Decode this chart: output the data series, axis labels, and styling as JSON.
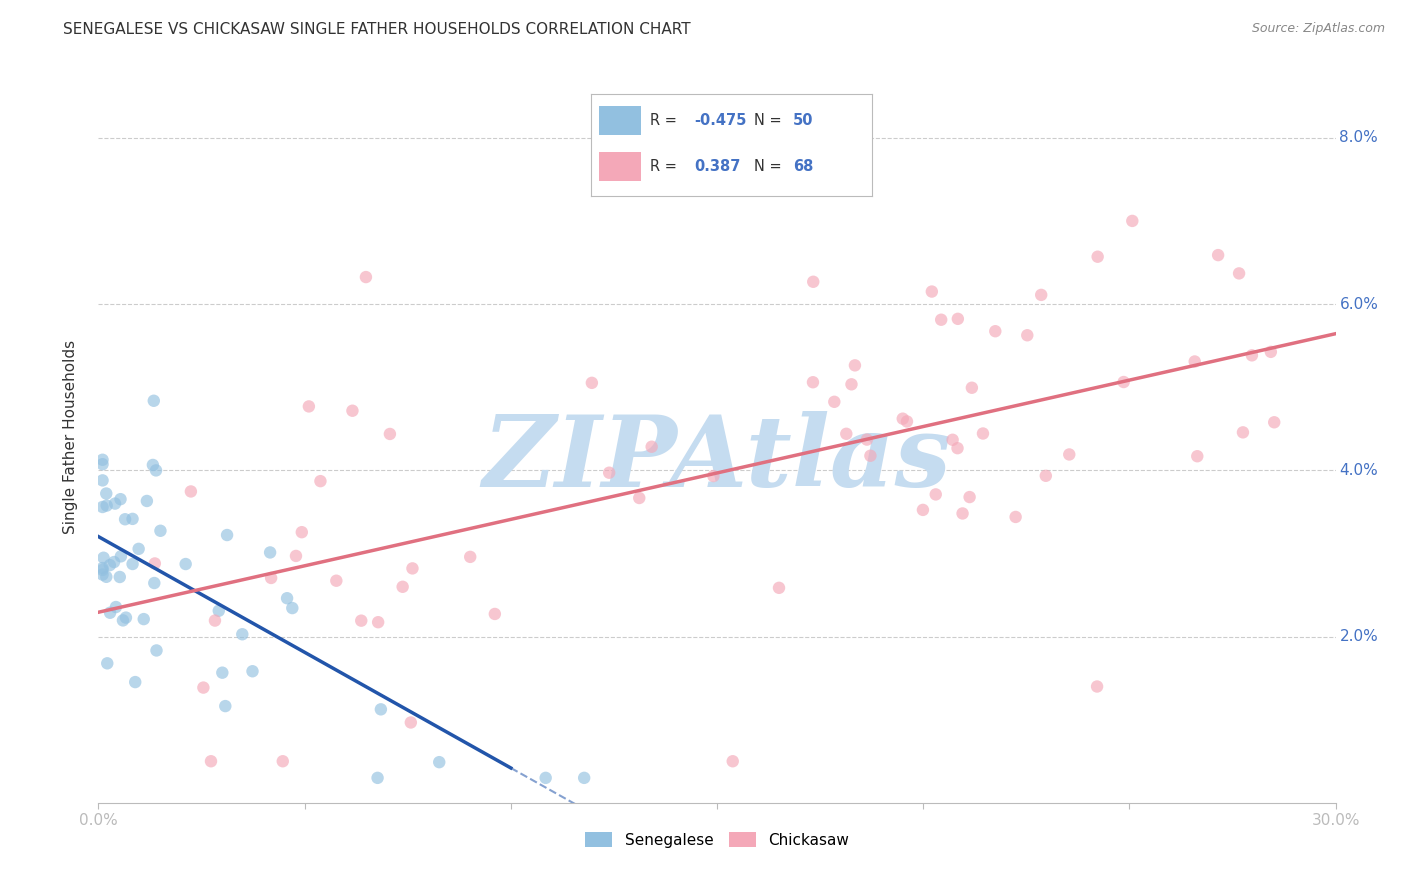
{
  "title": "SENEGALESE VS CHICKASAW SINGLE FATHER HOUSEHOLDS CORRELATION CHART",
  "source": "Source: ZipAtlas.com",
  "ylabel": "Single Father Households",
  "xlim": [
    0,
    0.3
  ],
  "ylim": [
    0,
    0.088
  ],
  "yticks": [
    0.0,
    0.02,
    0.04,
    0.06,
    0.08
  ],
  "ytick_labels": [
    "",
    "2.0%",
    "4.0%",
    "6.0%",
    "8.0%"
  ],
  "color_senegalese": "#92C0E0",
  "color_chickasaw": "#F4A8B8",
  "color_trendline_senegalese": "#2255AA",
  "color_trendline_chickasaw": "#E07080",
  "color_grid": "#CCCCCC",
  "watermark_color": "#C5DCF0",
  "background_color": "#FFFFFF",
  "title_color": "#333333",
  "source_color": "#888888",
  "tick_color": "#4472C4",
  "legend_text_color": "#333333",
  "legend_value_color": "#4472C4"
}
